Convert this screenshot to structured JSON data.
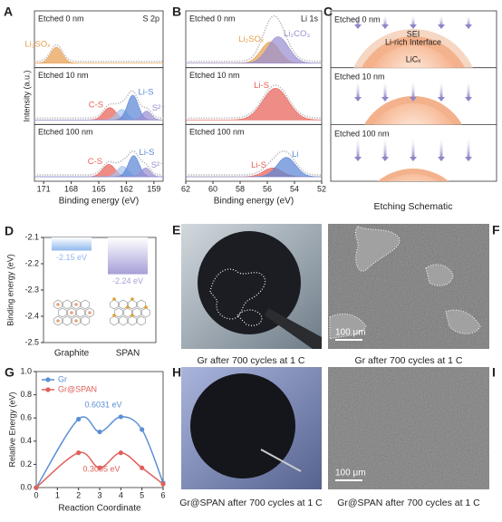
{
  "chart_data": [
    {
      "type": "spectra",
      "label": "A",
      "annotation": "S 2p",
      "xlabel": "Binding energy (eV)",
      "ylabel": "Intensity (a.u.)",
      "xlim": [
        172,
        158
      ],
      "xticks": [
        171,
        168,
        165,
        162,
        159
      ],
      "subplots": [
        {
          "title": "Etched 0 nm",
          "components": [
            {
              "name": "Li₂SOₓ",
              "color": "#e8a050",
              "center": 169.6,
              "height": 0.45,
              "fwhm": 1.5
            }
          ]
        },
        {
          "title": "Etched 10 nm",
          "components": [
            {
              "name": "C-S",
              "color": "#e86058",
              "center": 163.8,
              "height": 0.35,
              "fwhm": 1.6
            },
            {
              "color": "#a9c4ee",
              "center": 162.5,
              "height": 0.3,
              "fwhm": 1.4
            },
            {
              "name": "Li-S",
              "color": "#5b86d6",
              "center": 161.3,
              "height": 0.7,
              "fwhm": 1.4
            },
            {
              "name": "S²⁻",
              "color": "#9a8fd0",
              "center": 159.8,
              "height": 0.25,
              "fwhm": 1.2
            }
          ]
        },
        {
          "title": "Etched 100 nm",
          "components": [
            {
              "name": "C-S",
              "color": "#e86058",
              "center": 163.9,
              "height": 0.35,
              "fwhm": 1.6
            },
            {
              "color": "#a9c4ee",
              "center": 162.4,
              "height": 0.3,
              "fwhm": 1.4
            },
            {
              "name": "Li-S",
              "color": "#5b86d6",
              "center": 161.2,
              "height": 0.6,
              "fwhm": 1.4
            },
            {
              "name": "S²⁻",
              "color": "#9a8fd0",
              "center": 159.9,
              "height": 0.25,
              "fwhm": 1.2
            }
          ]
        }
      ]
    },
    {
      "type": "spectra",
      "label": "B",
      "annotation": "Li 1s",
      "xlabel": "Binding energy (eV)",
      "xlim": [
        62,
        52
      ],
      "xticks": [
        62,
        60,
        58,
        56,
        54,
        52
      ],
      "subplots": [
        {
          "title": "Etched 0 nm",
          "components": [
            {
              "name": "Li₂SOₓ",
              "color": "#e8a050",
              "center": 55.8,
              "height": 0.6,
              "fwhm": 1.6
            },
            {
              "name": "Li₂CO₃",
              "color": "#9a8fd0",
              "center": 55.2,
              "height": 0.75,
              "fwhm": 1.8
            }
          ]
        },
        {
          "title": "Etched 10 nm",
          "components": [
            {
              "name": "Li-S",
              "color": "#e86058",
              "center": 55.4,
              "height": 0.9,
              "fwhm": 2.2
            }
          ]
        },
        {
          "title": "Etched 100 nm",
          "components": [
            {
              "name": "Li-S",
              "color": "#e86058",
              "center": 55.6,
              "height": 0.25,
              "fwhm": 1.6
            },
            {
              "name": "Li",
              "color": "#5b86d6",
              "center": 54.6,
              "height": 0.55,
              "fwhm": 1.6
            }
          ]
        }
      ]
    },
    {
      "type": "bar",
      "label": "D",
      "ylabel": "Binding energy (eV)",
      "categories": [
        "Graphite",
        "SPAN"
      ],
      "values": [
        -2.15,
        -2.24
      ],
      "value_labels": [
        "-2.15 eV",
        "-2.24 eV"
      ],
      "colors": [
        "#8fb8ee",
        "#a59fd8"
      ],
      "ylim": [
        -2.5,
        -2.1
      ],
      "yticks": [
        -2.1,
        -2.2,
        -2.3,
        -2.4,
        -2.5
      ]
    },
    {
      "type": "line",
      "label": "G",
      "xlabel": "Reaction Coordinate",
      "ylabel": "Relative Energy (eV)",
      "xlim": [
        0,
        6
      ],
      "xticks": [
        0,
        1,
        2,
        3,
        4,
        5,
        6
      ],
      "ylim": [
        0,
        1
      ],
      "yticks": [
        {
          "value": 0,
          "label": "0.0"
        },
        0.2,
        0.4,
        0.6,
        0.8,
        {
          "value": 1,
          "label": "1.0"
        }
      ],
      "legend": "upper left",
      "annotations": [
        "0.6031 eV",
        "0.3005 eV"
      ],
      "series": [
        {
          "name": "Gr",
          "color": "#5b8fd6",
          "x": [
            0,
            2,
            3,
            4,
            5,
            6
          ],
          "values": [
            0,
            0.59,
            0.48,
            0.61,
            0.5,
            0.04
          ]
        },
        {
          "name": "Gr@SPAN",
          "color": "#e0605a",
          "x": [
            0,
            2,
            3,
            4,
            5,
            6
          ],
          "values": [
            0,
            0.3,
            0.17,
            0.3,
            0.17,
            0.03
          ]
        }
      ]
    }
  ],
  "schematic": {
    "label": "C",
    "caption": "Etching Schematic",
    "frames": [
      {
        "title": "Etched 0 nm",
        "layers": [
          "SEI",
          "Li-rich Interface",
          "LiCₓ"
        ]
      },
      {
        "title": "Etched 10 nm"
      },
      {
        "title": "Etched 100 nm"
      }
    ]
  },
  "images": [
    {
      "label": "E",
      "caption": "Gr after 700 cycles at 1 C"
    },
    {
      "label": "F",
      "caption": "Gr after 700 cycles at 1 C",
      "scale_bar": "100 μm"
    },
    {
      "label": "H",
      "caption": "Gr@SPAN after 700 cycles at 1 C"
    },
    {
      "label": "I",
      "caption": "Gr@SPAN after 700 cycles at 1 C",
      "scale_bar": "100 μm"
    }
  ]
}
